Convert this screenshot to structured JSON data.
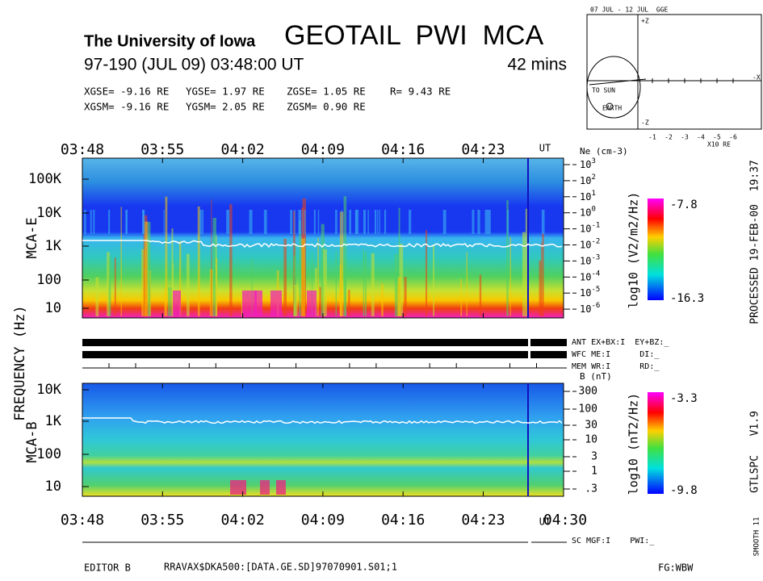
{
  "header": {
    "institution": "The University of Iowa",
    "title": "GEOTAIL  PWI  MCA",
    "time": "97-190 (JUL 09) 03:48:00 UT",
    "duration": "42 mins"
  },
  "position": {
    "gse": [
      "XGSE=  -9.16 RE",
      "YGSE=   1.97 RE",
      "ZGSE=   1.05 RE",
      "R=  9.43 RE"
    ],
    "gsm": [
      "XGSM=  -9.16 RE",
      "YGSM=   2.05 RE",
      "ZGSM=   0.90 RE"
    ]
  },
  "time_axis": {
    "labels": [
      "03:48",
      "03:55",
      "04:02",
      "04:09",
      "04:16",
      "04:23"
    ],
    "end_label": "04:30",
    "unit": "UT"
  },
  "freq_axis_label": "FREQUENCY (Hz)",
  "mca_e": {
    "name": "MCA-E",
    "freq_labels": [
      "100K",
      "10K",
      "1K",
      "100",
      "10"
    ],
    "ne_title": "Ne (cm-3)",
    "ne_base": "10",
    "ne_exponents": [
      "3",
      "2",
      "1",
      "0",
      "-1",
      "-2",
      "-3",
      "-4",
      "-5",
      "-6"
    ],
    "colorbar": {
      "title": "log10 (V2/m2/Hz)",
      "max": "-7.8",
      "min": "-16.3"
    }
  },
  "status": [
    "ANT EX+BX:I  EY+BZ:_",
    "WFC ME:I      DI:_",
    "MEM WR:I      RD:_"
  ],
  "mca_b": {
    "name": "MCA-B",
    "freq_labels": [
      "10K",
      "1K",
      "100",
      "10"
    ],
    "b_title": "B (nT)",
    "b_labels": [
      "300",
      "100",
      "30",
      "10",
      "3",
      "1",
      ".3"
    ],
    "colorbar": {
      "title": "log10 (nT2/Hz)",
      "max": "-3.3",
      "min": "-9.8"
    }
  },
  "side": {
    "processed": "PROCESSED 19-FEB-00  19:37",
    "version": "GTLSPC   V1.9",
    "smooth": "SMOOTH 11"
  },
  "footer": {
    "sc": "SC MGF:I    PWI:_",
    "editor": "EDITOR B",
    "file": "RRAVAX$DKA500:[DATA.GE.SD]97070901.S01;1",
    "fg": "FG:WBW"
  },
  "orbit": {
    "title": "07 JUL - 12 JUL  GGE",
    "sun": "TO SUN",
    "earth": "EARTH",
    "scale": "X10 RE",
    "x_ticks": [
      "-1",
      "-2",
      "-3",
      "-4",
      "-5",
      "-6"
    ],
    "x_label": "-X",
    "z_plus": "+Z",
    "z_minus": "-Z"
  }
}
